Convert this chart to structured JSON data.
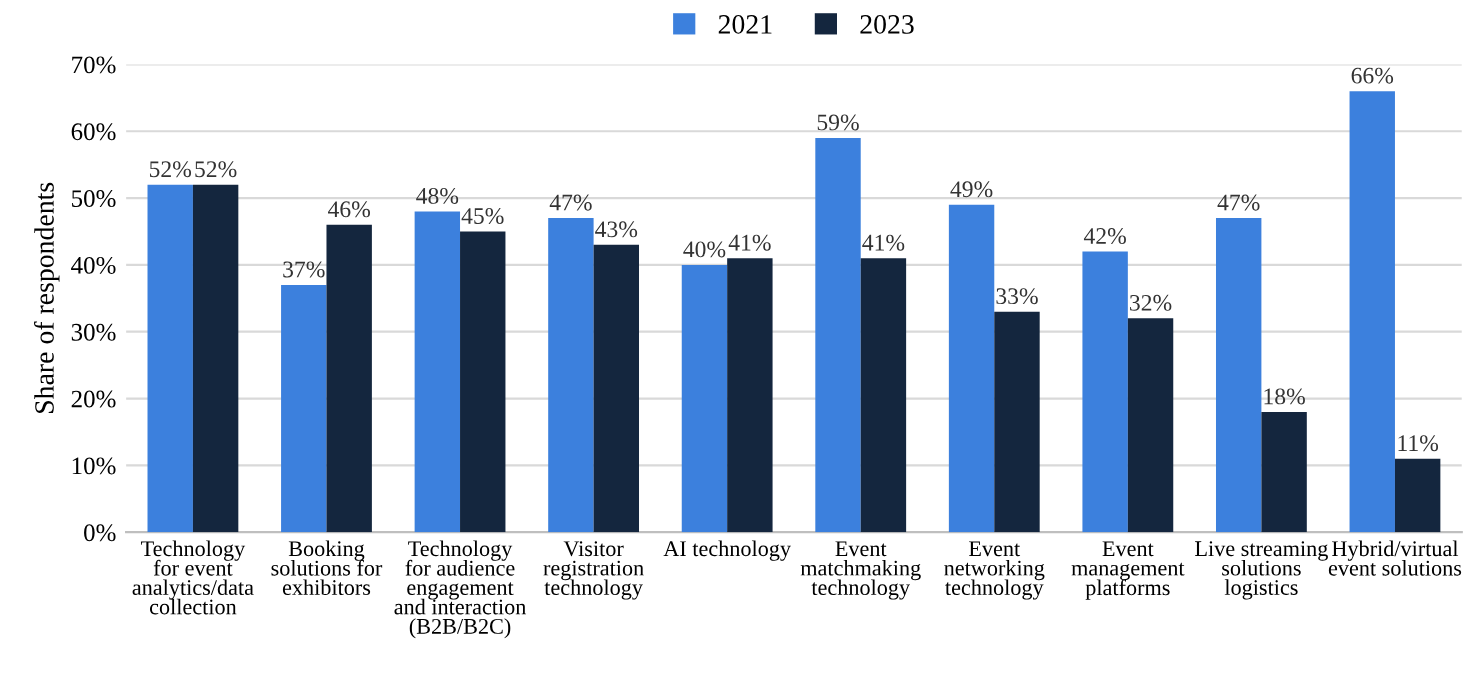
{
  "chart_data": {
    "type": "bar",
    "ylabel": "Share of respondents",
    "categories": [
      "Technology\nfor event\nanalytics/data\ncollection",
      "Booking\nsolutions for\nexhibitors",
      "Technology\nfor audience\nengagement\nand interaction\n(B2B/B2C)",
      "Visitor\nregistration\ntechnology",
      "AI technology",
      "Event\nmatchmaking\ntechnology",
      "Event\nnetworking\ntechnology",
      "Event\nmanagement\nplatforms",
      "Live streaming\nsolutions\nlogistics",
      "Hybrid/virtual\nevent solutions"
    ],
    "series": [
      {
        "name": "2021",
        "color": "#3c80dd",
        "values": [
          52,
          37,
          48,
          47,
          40,
          59,
          49,
          42,
          47,
          66
        ],
        "value_labels": [
          "52%",
          "37%",
          "48%",
          "47%",
          "40%",
          "59%",
          "49%",
          "42%",
          "47%",
          "66%"
        ]
      },
      {
        "name": "2023",
        "color": "#14263e",
        "values": [
          52,
          46,
          45,
          43,
          41,
          41,
          33,
          32,
          18,
          11
        ],
        "value_labels": [
          "52%",
          "46%",
          "45%",
          "43%",
          "41%",
          "41%",
          "33%",
          "32%",
          "18%",
          "11%"
        ]
      }
    ],
    "ylim": [
      0,
      70
    ],
    "yticks": [
      {
        "value": 0,
        "label": "0%"
      },
      {
        "value": 10,
        "label": "10%"
      },
      {
        "value": 20,
        "label": "20%"
      },
      {
        "value": 30,
        "label": "30%"
      },
      {
        "value": 40,
        "label": "40%"
      },
      {
        "value": 50,
        "label": "50%"
      },
      {
        "value": 60,
        "label": "60%"
      },
      {
        "value": 70,
        "label": "70%"
      }
    ],
    "grid": "y",
    "legend": "top"
  }
}
